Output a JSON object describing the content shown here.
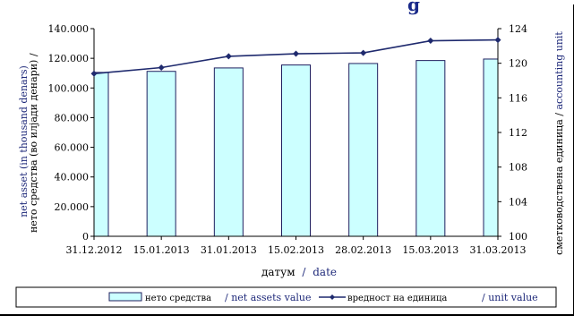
{
  "chart_data": {
    "type": "bar",
    "title_fragment": "g",
    "categories": [
      "31.12.2012",
      "15.01.2013",
      "31.01.2013",
      "15.02.2013",
      "28.02.2013",
      "15.03.2013",
      "31.03.2013"
    ],
    "series": [
      {
        "name": "нето средства",
        "type": "bar",
        "axis": "left",
        "values": [
          110500,
          111200,
          113500,
          115500,
          116500,
          118500,
          119500
        ]
      },
      {
        "name": "вредност на единица",
        "type": "line",
        "axis": "right",
        "values": [
          118.8,
          119.5,
          120.8,
          121.1,
          121.2,
          122.6,
          122.7
        ]
      }
    ],
    "left_axis": {
      "label_cyrillic": "нето средства (во илјади денари) /",
      "label_english": "net asset (in thousand denars)",
      "ylim": [
        0,
        140000
      ],
      "ticks": [
        "0",
        "20.000",
        "40.000",
        "60.000",
        "80.000",
        "100.000",
        "120.000",
        "140.000"
      ]
    },
    "right_axis": {
      "label_cyrillic": "сметководствена единица /",
      "label_english": "accounting unit",
      "ylim": [
        100,
        124
      ],
      "ticks": [
        "100",
        "104",
        "108",
        "112",
        "116",
        "120",
        "124"
      ]
    },
    "x_axis": {
      "label_cyrillic": "датум",
      "label_sep": "/",
      "label_english": "date"
    },
    "legend": {
      "position": "bottom",
      "bar_cyrillic": "нето средства",
      "bar_english": "/ net assets  value",
      "line_cyrillic": "вредност на единица",
      "line_english": "/ unit value"
    },
    "grid": false,
    "colors": {
      "bar_fill": "#ccffff",
      "bar_stroke": "#1f1f5f",
      "line": "#1f2a6e",
      "english_text": "#1f2a7a",
      "axis": "#000000",
      "title": "#1a2a8a"
    }
  }
}
